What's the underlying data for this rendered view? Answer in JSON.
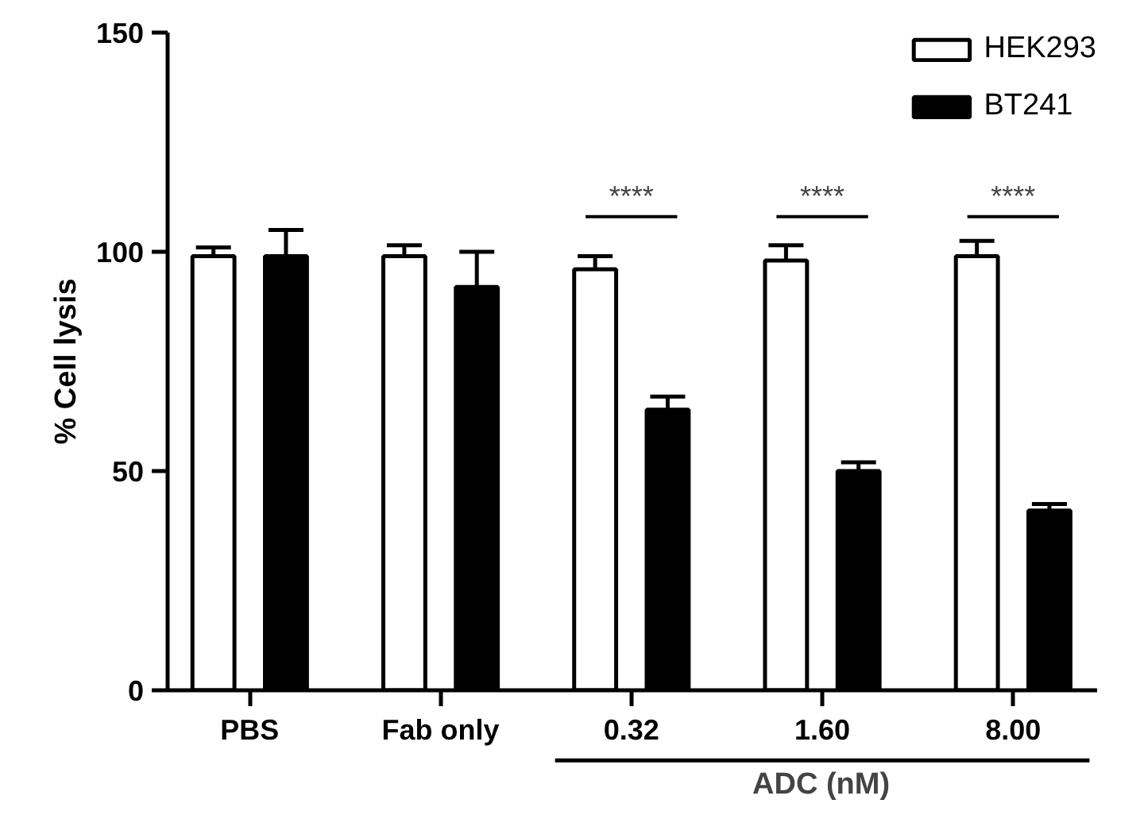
{
  "chart_data": {
    "type": "bar",
    "ylabel": "% Cell lysis",
    "xlabel": "ADC (nM)",
    "categories": [
      "PBS",
      "Fab only",
      "0.32",
      "1.60",
      "8.00"
    ],
    "series": [
      {
        "name": "HEK293",
        "color": "#ffffff",
        "values": [
          99,
          99,
          96,
          98,
          99
        ],
        "errors": [
          2,
          2.5,
          3,
          3.5,
          3.5
        ]
      },
      {
        "name": "BT241",
        "color": "#000000",
        "values": [
          99,
          92,
          64,
          50,
          41
        ],
        "errors": [
          6,
          8,
          3,
          2,
          1.5
        ]
      }
    ],
    "ylim": [
      0,
      150
    ],
    "yticks": [
      0,
      50,
      100,
      150
    ],
    "grid": false,
    "legend": "top right",
    "annotations": [
      "****",
      "****",
      "****"
    ]
  }
}
